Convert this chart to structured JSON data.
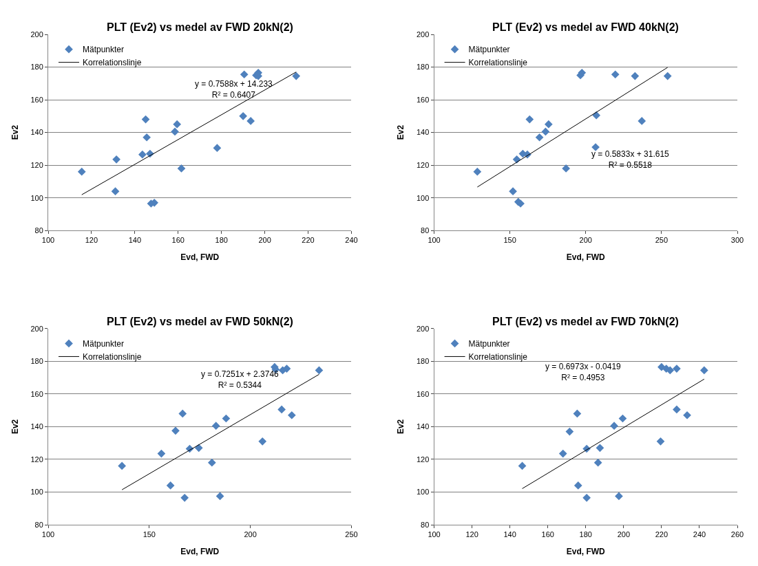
{
  "chart_data": [
    {
      "type": "scatter",
      "title": "PLT (Ev2) vs medel av FWD 20kN(2)",
      "xlabel": "Evd, FWD",
      "ylabel": "Ev2",
      "xlim": [
        100,
        240
      ],
      "xticks": [
        100,
        120,
        140,
        160,
        180,
        200,
        220,
        240
      ],
      "ylim": [
        80,
        200
      ],
      "yticks": [
        80,
        100,
        120,
        140,
        160,
        180,
        200
      ],
      "grid": "y",
      "legend": "top left",
      "marker": "diamond",
      "series": [
        {
          "name": "Mätpunkter",
          "color": "#4f81bd",
          "x": [
            115.5,
            131,
            131.5,
            143.5,
            145,
            145.5,
            147,
            147.5,
            149,
            158.5,
            159.5,
            161.5,
            178,
            190,
            190.5,
            193.5,
            196,
            197,
            197,
            214.5
          ],
          "values": [
            116,
            104,
            123.5,
            126.5,
            148,
            137,
            127,
            96.5,
            97,
            140.5,
            145,
            118,
            130.5,
            150,
            175.5,
            147,
            175,
            176.5,
            174.5,
            174.5
          ]
        },
        {
          "name": "Korrelationslinje",
          "type": "line",
          "color": "#000000",
          "marker": "none",
          "x": [
            115.5,
            214.5
          ],
          "values": [
            101.9,
            177.0
          ]
        }
      ],
      "annotations": [
        "y = 0.7588x + 14.233\nR² = 0.6407"
      ]
    },
    {
      "type": "scatter",
      "title": "PLT (Ev2) vs medel av FWD 40kN(2)",
      "xlabel": "Evd, FWD",
      "ylabel": "Ev2",
      "xlim": [
        100,
        300
      ],
      "xticks": [
        100,
        150,
        200,
        250,
        300
      ],
      "ylim": [
        80,
        200
      ],
      "yticks": [
        80,
        100,
        120,
        140,
        160,
        180,
        200
      ],
      "grid": "y",
      "legend": "top left",
      "marker": "diamond",
      "series": [
        {
          "name": "Mätpunkter",
          "color": "#4f81bd",
          "x": [
            128.5,
            152,
            154.5,
            155.5,
            157,
            158.5,
            161.5,
            163,
            169.5,
            173.5,
            175.5,
            187,
            196.5,
            197.5,
            206.5,
            207,
            219.5,
            232.5,
            237,
            254
          ],
          "values": [
            116,
            104,
            123.5,
            97.5,
            96.5,
            127,
            126.5,
            148,
            137,
            140.5,
            145,
            118,
            175,
            176.5,
            131,
            150.5,
            175.5,
            174.5,
            147,
            174.5
          ]
        },
        {
          "name": "Korrelationslinje",
          "type": "line",
          "color": "#000000",
          "marker": "none",
          "x": [
            128.5,
            254
          ],
          "values": [
            106.6,
            179.8
          ]
        }
      ],
      "annotations": [
        "y = 0.5833x + 31.615\nR² = 0.5518"
      ]
    },
    {
      "type": "scatter",
      "title": "PLT (Ev2) vs medel av FWD 50kN(2)",
      "xlabel": "Evd, FWD",
      "ylabel": "Ev2",
      "xlim": [
        100,
        250
      ],
      "xticks": [
        100,
        150,
        200,
        250
      ],
      "ylim": [
        80,
        200
      ],
      "yticks": [
        80,
        100,
        120,
        140,
        160,
        180,
        200
      ],
      "grid": "y",
      "legend": "top left",
      "marker": "diamond",
      "series": [
        {
          "name": "Mätpunkter",
          "color": "#4f81bd",
          "x": [
            136.5,
            156,
            160.5,
            163,
            166.5,
            167.5,
            170,
            174.5,
            181,
            183,
            188,
            185,
            206,
            212,
            212.5,
            215.5,
            216,
            218,
            220.5,
            234
          ],
          "values": [
            116,
            123.5,
            104,
            137.5,
            148,
            96.5,
            126.5,
            127,
            118,
            140.5,
            145,
            97.5,
            131,
            176.5,
            175,
            150.5,
            174.5,
            175.5,
            147,
            174.5
          ]
        },
        {
          "name": "Korrelationslinje",
          "type": "line",
          "color": "#000000",
          "marker": "none",
          "x": [
            136.5,
            234
          ],
          "values": [
            101.4,
            172.0
          ]
        }
      ],
      "annotations": [
        "y = 0.7251x + 2.3746\nR² = 0.5344"
      ]
    },
    {
      "type": "scatter",
      "title": "PLT (Ev2) vs medel av FWD 70kN(2)",
      "xlabel": "Evd, FWD",
      "ylabel": "Ev2",
      "xlim": [
        100,
        260
      ],
      "xticks": [
        100,
        120,
        140,
        160,
        180,
        200,
        220,
        240,
        260
      ],
      "ylim": [
        80,
        200
      ],
      "yticks": [
        80,
        100,
        120,
        140,
        160,
        180,
        200
      ],
      "grid": "y",
      "legend": "top left",
      "marker": "diamond",
      "series": [
        {
          "name": "Mätpunkter",
          "color": "#4f81bd",
          "x": [
            146.5,
            168,
            171.5,
            175.5,
            176,
            180.5,
            180.5,
            186.5,
            187.5,
            195,
            199.5,
            197.5,
            219.5,
            220,
            222.5,
            224.5,
            228,
            228,
            233.5,
            242.5
          ],
          "values": [
            116,
            123.5,
            137,
            148,
            104,
            96.5,
            126.5,
            118,
            127,
            140.5,
            145,
            97.5,
            131,
            176.5,
            175.5,
            174.5,
            175.5,
            150.5,
            147,
            174.5
          ]
        },
        {
          "name": "Korrelationslinje",
          "type": "line",
          "color": "#000000",
          "marker": "none",
          "x": [
            146.5,
            242.5
          ],
          "values": [
            102.1,
            169.1
          ]
        }
      ],
      "annotations": [
        "y = 0.6973x - 0.0419\nR² = 0.4953"
      ]
    }
  ]
}
